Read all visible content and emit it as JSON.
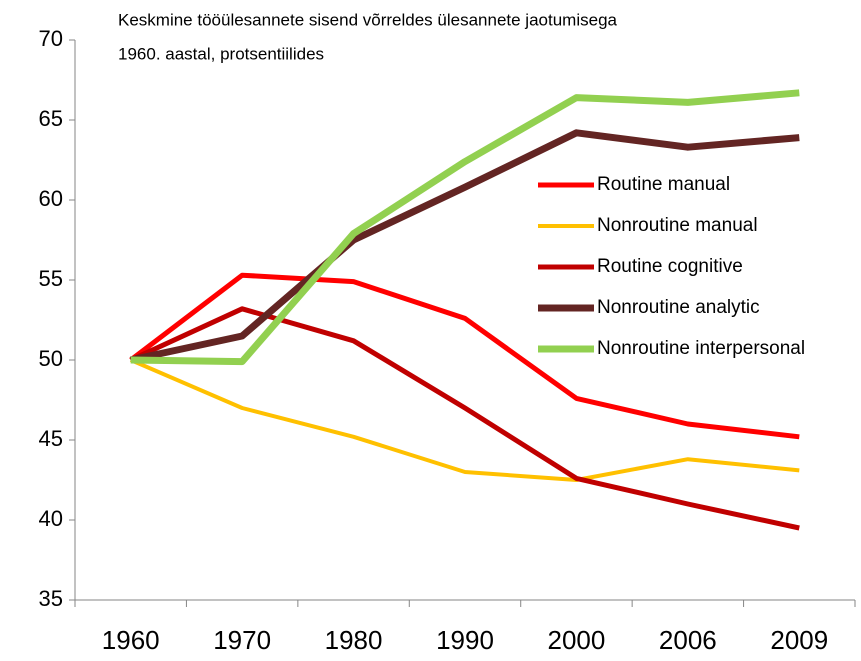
{
  "chart_data": {
    "type": "line",
    "title": [
      "Keskmine tööülesannete sisend võrreldes ülesannete jaotumisega",
      "1960. aastal, protsentiilides"
    ],
    "categories": [
      "1960",
      "1970",
      "1980",
      "1990",
      "2000",
      "2006",
      "2009"
    ],
    "series": [
      {
        "name": "Routine manual",
        "color": "#ff0000",
        "values": [
          50,
          55.3,
          54.9,
          52.6,
          47.6,
          46.0,
          45.2
        ]
      },
      {
        "name": "Nonroutine manual",
        "color": "#ffc000",
        "values": [
          50,
          47.0,
          45.2,
          43.0,
          42.5,
          43.8,
          43.1
        ]
      },
      {
        "name": "Routine cognitive",
        "color": "#c00000",
        "values": [
          50,
          53.2,
          51.2,
          47.0,
          42.6,
          41.0,
          39.5
        ]
      },
      {
        "name": "Nonroutine analytic",
        "color": "#632523",
        "values": [
          50,
          51.5,
          57.5,
          60.8,
          64.2,
          63.3,
          63.9
        ]
      },
      {
        "name": "Nonroutine interpersonal",
        "color": "#92d050",
        "values": [
          50,
          49.9,
          57.9,
          62.4,
          66.4,
          66.1,
          66.7
        ]
      }
    ],
    "ylim": [
      35,
      70
    ],
    "yticks": [
      35,
      40,
      45,
      50,
      55,
      60,
      65,
      70
    ],
    "legend": "right",
    "grid": false
  }
}
